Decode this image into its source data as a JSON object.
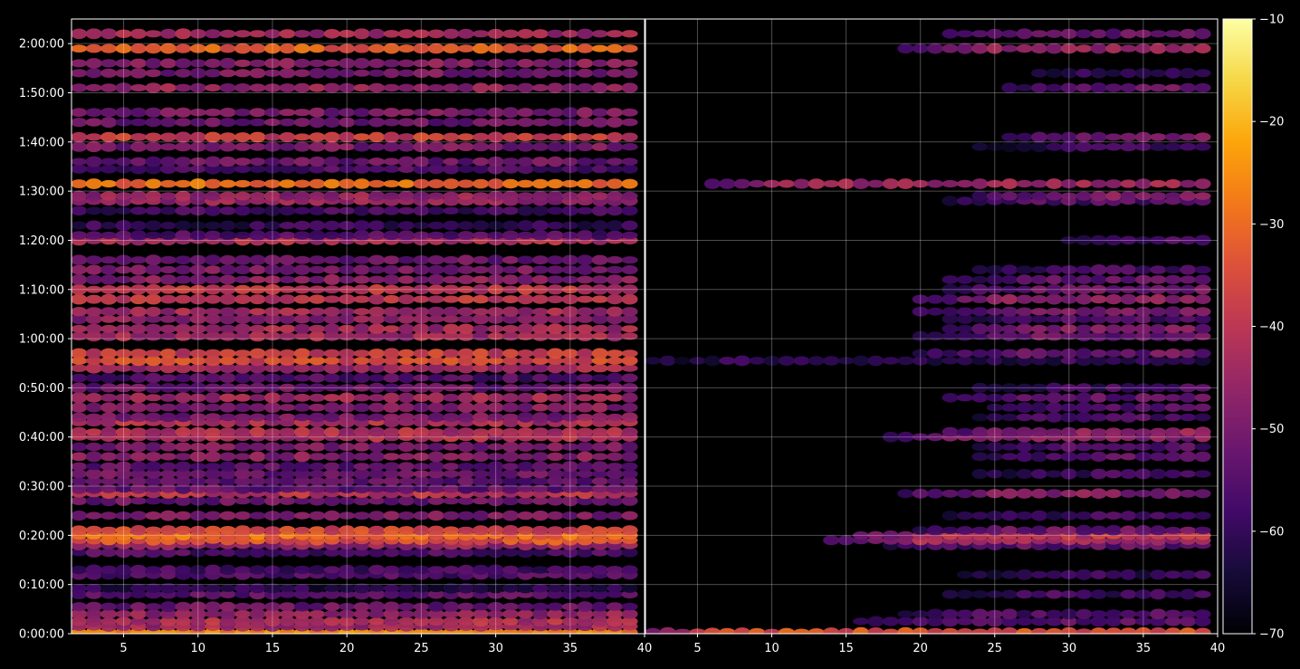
{
  "chart_data": [
    {
      "type": "heatmap",
      "panel": "left",
      "title": "",
      "xlabel": "",
      "ylabel": "",
      "xlim": [
        1.5,
        40
      ],
      "ylim": [
        0,
        7500
      ],
      "x_ticks": [
        "5",
        "10",
        "15",
        "20",
        "25",
        "30",
        "35",
        "40"
      ],
      "x_tick_values": [
        5,
        10,
        15,
        20,
        25,
        30,
        35,
        40
      ],
      "y_ticks": [
        "0:00:00",
        "0:10:00",
        "0:20:00",
        "0:30:00",
        "0:40:00",
        "0:50:00",
        "1:00:00",
        "1:10:00",
        "1:20:00",
        "1:30:00",
        "1:40:00",
        "1:50:00",
        "2:00:00"
      ],
      "y_tick_values": [
        0,
        600,
        1200,
        1800,
        2400,
        3000,
        3600,
        4200,
        4800,
        5400,
        6000,
        6600,
        7200
      ],
      "grid": true,
      "bands": [
        {
          "t": 15,
          "level": -26
        },
        {
          "t": 90,
          "level": -44
        },
        {
          "t": 150,
          "level": -42
        },
        {
          "t": 240,
          "level": -46
        },
        {
          "t": 330,
          "level": -52
        },
        {
          "t": 480,
          "level": -54
        },
        {
          "t": 555,
          "level": -62
        },
        {
          "t": 720,
          "level": -56
        },
        {
          "t": 780,
          "level": -58
        },
        {
          "t": 990,
          "level": -56
        },
        {
          "t": 1080,
          "level": -46
        },
        {
          "t": 1140,
          "level": -34
        },
        {
          "t": 1200,
          "level": -30
        },
        {
          "t": 1260,
          "level": -36
        },
        {
          "t": 1440,
          "level": -50
        },
        {
          "t": 1620,
          "level": -52
        },
        {
          "t": 1710,
          "level": -40
        },
        {
          "t": 1770,
          "level": -54
        },
        {
          "t": 1860,
          "level": -54
        },
        {
          "t": 1950,
          "level": -52
        },
        {
          "t": 2040,
          "level": -54
        },
        {
          "t": 2160,
          "level": -48
        },
        {
          "t": 2280,
          "level": -50
        },
        {
          "t": 2400,
          "level": -42
        },
        {
          "t": 2460,
          "level": -42
        },
        {
          "t": 2580,
          "level": -42
        },
        {
          "t": 2640,
          "level": -50
        },
        {
          "t": 2760,
          "level": -48
        },
        {
          "t": 2880,
          "level": -44
        },
        {
          "t": 3000,
          "level": -52
        },
        {
          "t": 3120,
          "level": -56
        },
        {
          "t": 3240,
          "level": -44
        },
        {
          "t": 3330,
          "level": -36
        },
        {
          "t": 3420,
          "level": -38
        },
        {
          "t": 3630,
          "level": -44
        },
        {
          "t": 3720,
          "level": -44
        },
        {
          "t": 3840,
          "level": -48
        },
        {
          "t": 3930,
          "level": -44
        },
        {
          "t": 4080,
          "level": -40
        },
        {
          "t": 4200,
          "level": -40
        },
        {
          "t": 4320,
          "level": -48
        },
        {
          "t": 4440,
          "level": -50
        },
        {
          "t": 4560,
          "level": -52
        },
        {
          "t": 4800,
          "level": -42
        },
        {
          "t": 4860,
          "level": -56
        },
        {
          "t": 4980,
          "level": -60
        },
        {
          "t": 5160,
          "level": -58
        },
        {
          "t": 5280,
          "level": -46
        },
        {
          "t": 5340,
          "level": -46
        },
        {
          "t": 5490,
          "level": -30
        },
        {
          "t": 5670,
          "level": -56
        },
        {
          "t": 5760,
          "level": -52
        },
        {
          "t": 5940,
          "level": -50
        },
        {
          "t": 6060,
          "level": -38
        },
        {
          "t": 6240,
          "level": -52
        },
        {
          "t": 6360,
          "level": -50
        },
        {
          "t": 6660,
          "level": -46
        },
        {
          "t": 6840,
          "level": -50
        },
        {
          "t": 6960,
          "level": -48
        },
        {
          "t": 7140,
          "level": -32
        },
        {
          "t": 7320,
          "level": -44
        }
      ]
    },
    {
      "type": "heatmap",
      "panel": "right",
      "title": "",
      "xlabel": "",
      "ylabel": "",
      "xlim": [
        1.5,
        40
      ],
      "ylim": [
        0,
        7500
      ],
      "x_ticks": [
        "5",
        "10",
        "15",
        "20",
        "25",
        "30",
        "35",
        "40"
      ],
      "x_tick_values": [
        5,
        10,
        15,
        20,
        25,
        30,
        35,
        40
      ],
      "grid": true,
      "bands": [
        {
          "t": 15,
          "level": -34,
          "x_start": 1.5
        },
        {
          "t": 150,
          "level": -54,
          "x_start": 16
        },
        {
          "t": 240,
          "level": -56,
          "x_start": 19
        },
        {
          "t": 480,
          "level": -58,
          "x_start": 22
        },
        {
          "t": 720,
          "level": -60,
          "x_start": 23
        },
        {
          "t": 1080,
          "level": -54,
          "x_start": 18
        },
        {
          "t": 1140,
          "level": -44,
          "x_start": 14
        },
        {
          "t": 1200,
          "level": -40,
          "x_start": 16
        },
        {
          "t": 1260,
          "level": -52,
          "x_start": 20
        },
        {
          "t": 1440,
          "level": -58,
          "x_start": 22
        },
        {
          "t": 1710,
          "level": -48,
          "x_start": 19
        },
        {
          "t": 1950,
          "level": -58,
          "x_start": 24
        },
        {
          "t": 2160,
          "level": -54,
          "x_start": 24
        },
        {
          "t": 2280,
          "level": -56,
          "x_start": 24
        },
        {
          "t": 2400,
          "level": -48,
          "x_start": 18
        },
        {
          "t": 2460,
          "level": -46,
          "x_start": 22
        },
        {
          "t": 2640,
          "level": -56,
          "x_start": 24
        },
        {
          "t": 2760,
          "level": -56,
          "x_start": 25
        },
        {
          "t": 2880,
          "level": -54,
          "x_start": 22
        },
        {
          "t": 3000,
          "level": -58,
          "x_start": 24
        },
        {
          "t": 3330,
          "level": -60,
          "x_start": 2
        },
        {
          "t": 3420,
          "level": -52,
          "x_start": 20
        },
        {
          "t": 3630,
          "level": -52,
          "x_start": 20
        },
        {
          "t": 3720,
          "level": -50,
          "x_start": 22
        },
        {
          "t": 3840,
          "level": -56,
          "x_start": 22
        },
        {
          "t": 3930,
          "level": -50,
          "x_start": 20
        },
        {
          "t": 4080,
          "level": -48,
          "x_start": 20
        },
        {
          "t": 4200,
          "level": -52,
          "x_start": 22
        },
        {
          "t": 4320,
          "level": -54,
          "x_start": 22
        },
        {
          "t": 4440,
          "level": -58,
          "x_start": 24
        },
        {
          "t": 4800,
          "level": -56,
          "x_start": 30
        },
        {
          "t": 5280,
          "level": -56,
          "x_start": 22
        },
        {
          "t": 5340,
          "level": -48,
          "x_start": 24
        },
        {
          "t": 5490,
          "level": -44,
          "x_start": 6
        },
        {
          "t": 5940,
          "level": -60,
          "x_start": 24
        },
        {
          "t": 6060,
          "level": -50,
          "x_start": 26
        },
        {
          "t": 6660,
          "level": -52,
          "x_start": 26
        },
        {
          "t": 6840,
          "level": -58,
          "x_start": 28
        },
        {
          "t": 7140,
          "level": -46,
          "x_start": 19
        },
        {
          "t": 7320,
          "level": -52,
          "x_start": 22
        }
      ]
    }
  ],
  "colorbar": {
    "ticks": [
      "−10",
      "−20",
      "−30",
      "−40",
      "−50",
      "−60",
      "−70"
    ],
    "tick_values": [
      -10,
      -20,
      -30,
      -40,
      -50,
      -60,
      -70
    ],
    "range": [
      -70,
      -10
    ],
    "colormap": "inferno"
  }
}
